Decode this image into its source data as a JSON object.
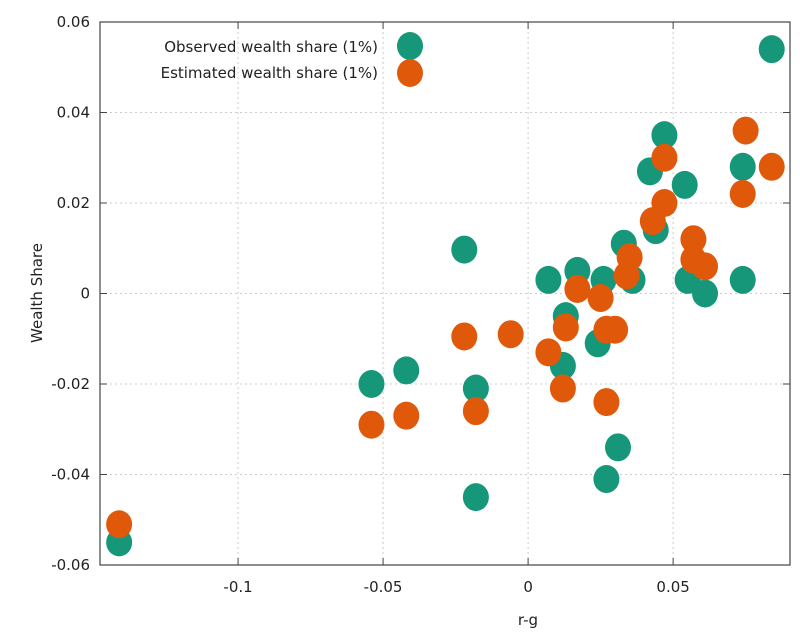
{
  "chart_data": {
    "type": "scatter",
    "title": "",
    "xlabel": "r-g",
    "ylabel": "Wealth Share",
    "xlim": [
      -0.1476,
      0.0903
    ],
    "ylim": [
      -0.06,
      0.06
    ],
    "xticks": [
      -0.1,
      -0.05,
      0,
      0.05
    ],
    "xtick_labels": [
      "-0.1",
      "-0.05",
      "0",
      "0.05"
    ],
    "yticks": [
      -0.06,
      -0.04,
      -0.02,
      0,
      0.02,
      0.04,
      0.06
    ],
    "ytick_labels": [
      "-0.06",
      "-0.04",
      "-0.02",
      "0",
      "0.02",
      "0.04",
      "0.06"
    ],
    "grid": true,
    "legend_position": "top-left",
    "series": [
      {
        "name": "Observed wealth share (1%)",
        "color": "#17977a",
        "points": [
          [
            0.084,
            0.054
          ],
          [
            0.047,
            0.035
          ],
          [
            0.074,
            0.028
          ],
          [
            0.042,
            0.027
          ],
          [
            0.054,
            0.024
          ],
          [
            0.044,
            0.014
          ],
          [
            0.033,
            0.011
          ],
          [
            0.026,
            0.003
          ],
          [
            0.007,
            0.003
          ],
          [
            0.017,
            0.005
          ],
          [
            0.036,
            0.003
          ],
          [
            0.055,
            0.003
          ],
          [
            0.061,
            0.0
          ],
          [
            0.074,
            0.003
          ],
          [
            -0.022,
            0.0097
          ],
          [
            0.013,
            -0.005
          ],
          [
            0.012,
            -0.016
          ],
          [
            0.024,
            -0.011
          ],
          [
            -0.042,
            -0.017
          ],
          [
            -0.054,
            -0.02
          ],
          [
            -0.018,
            -0.021
          ],
          [
            0.031,
            -0.034
          ],
          [
            0.027,
            -0.041
          ],
          [
            -0.018,
            -0.045
          ],
          [
            -0.141,
            -0.055
          ]
        ]
      },
      {
        "name": "Estimated wealth share (1%)",
        "color": "#e0590b",
        "points": [
          [
            0.075,
            0.036
          ],
          [
            0.084,
            0.028
          ],
          [
            0.047,
            0.03
          ],
          [
            0.074,
            0.022
          ],
          [
            0.047,
            0.02
          ],
          [
            0.043,
            0.016
          ],
          [
            0.057,
            0.012
          ],
          [
            0.057,
            0.0075
          ],
          [
            0.061,
            0.006
          ],
          [
            0.035,
            0.008
          ],
          [
            0.034,
            0.004
          ],
          [
            0.025,
            -0.001
          ],
          [
            0.017,
            0.001
          ],
          [
            0.013,
            -0.0075
          ],
          [
            0.03,
            -0.008
          ],
          [
            0.027,
            -0.008
          ],
          [
            0.007,
            -0.013
          ],
          [
            -0.006,
            -0.009
          ],
          [
            -0.022,
            -0.0095
          ],
          [
            0.012,
            -0.021
          ],
          [
            0.027,
            -0.024
          ],
          [
            -0.018,
            -0.026
          ],
          [
            -0.042,
            -0.027
          ],
          [
            -0.054,
            -0.029
          ],
          [
            -0.141,
            -0.051
          ]
        ]
      }
    ]
  }
}
